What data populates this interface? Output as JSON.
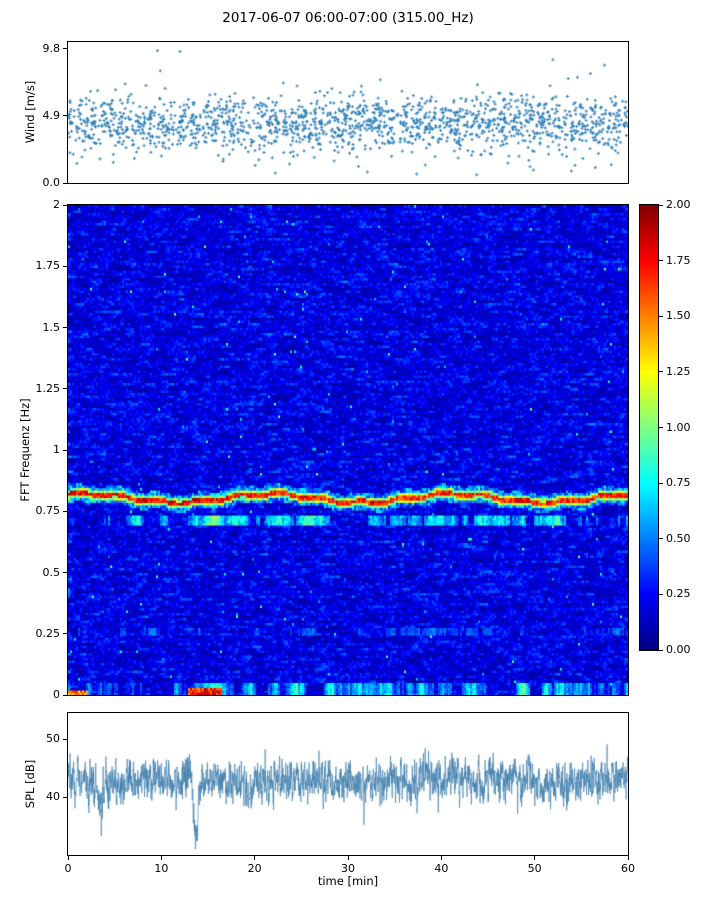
{
  "figure": {
    "title": "2017-06-07 06:00-07:00 (315.00_Hz)",
    "xlabel": "time [min]",
    "background_color": "#ffffff",
    "text_color": "#000000"
  },
  "xticks": [
    {
      "value": 0,
      "label": "0"
    },
    {
      "value": 10,
      "label": "10"
    },
    {
      "value": 20,
      "label": "20"
    },
    {
      "value": 30,
      "label": "30"
    },
    {
      "value": 40,
      "label": "40"
    },
    {
      "value": 50,
      "label": "50"
    },
    {
      "value": 60,
      "label": "60"
    }
  ],
  "chart_data": [
    {
      "id": "wind",
      "type": "scatter",
      "ylabel": "Wind [m/s]",
      "x_range": [
        0,
        60
      ],
      "y_range": [
        0,
        10.3
      ],
      "yticks": [
        {
          "value": 9.8,
          "label": "9.8"
        },
        {
          "value": 4.9,
          "label": "4.9"
        },
        {
          "value": 0,
          "label": "0.0"
        }
      ],
      "marker_color": "#2e7fb8",
      "n_points": 1700,
      "mean": 4.35,
      "std": 1.05,
      "outlier_high_max": 9.7,
      "description": "Dense scatter of wind speed ~2-7 m/s around 4.5 m/s, sparse outliers up to ~9.7"
    },
    {
      "id": "spectrogram",
      "type": "heatmap",
      "ylabel": "FFT Frequenz [Hz]",
      "x_range": [
        0,
        60
      ],
      "y_range": [
        0,
        2
      ],
      "yticks": [
        {
          "value": 2,
          "label": "2"
        },
        {
          "value": 1.75,
          "label": "1.75"
        },
        {
          "value": 1.5,
          "label": "1.5"
        },
        {
          "value": 1.25,
          "label": "1.25"
        },
        {
          "value": 1,
          "label": "1"
        },
        {
          "value": 0.75,
          "label": "0.75"
        },
        {
          "value": 0.5,
          "label": "0.5"
        },
        {
          "value": 0.25,
          "label": "0.25"
        },
        {
          "value": 0,
          "label": "0"
        }
      ],
      "vmin": 0,
      "vmax": 2,
      "colormap": "jet",
      "background_level": 0.15,
      "features": [
        {
          "name": "main-ridge",
          "freq_hz": 0.805,
          "freq_wiggle_hz": 0.018,
          "peak_value": 2.0,
          "extent": "full width"
        },
        {
          "name": "secondary-band",
          "freq_hz": 0.71,
          "peak_value": 1.0,
          "intermittent": true
        },
        {
          "name": "near-dc-band",
          "freq_hz": 0.03,
          "peak_value": 1.0,
          "intermittent": true
        },
        {
          "name": "near-dc-burst",
          "freq_hz": 0.02,
          "t_range_min": [
            12.8,
            16.5
          ],
          "peak_value": 2.0
        },
        {
          "name": "left-edge-burst",
          "freq_hz": 0.015,
          "t_range_min": [
            0,
            2.2
          ],
          "peak_value": 1.6
        },
        {
          "name": "weak-band",
          "freq_hz": 0.26,
          "peak_value": 0.6,
          "intermittent": true
        }
      ]
    },
    {
      "id": "spl",
      "type": "line",
      "ylabel": "SPL [dB]",
      "x_range": [
        0,
        60
      ],
      "y_range": [
        30,
        54.5
      ],
      "yticks": [
        {
          "value": 50,
          "label": "50"
        },
        {
          "value": 40,
          "label": "40"
        }
      ],
      "line_color": "#3f7fad",
      "mean": 42.8,
      "noise_std": 1.5,
      "dips": [
        {
          "time_min": 13.7,
          "depth_db": 9.8
        },
        {
          "time_min": 3.6,
          "depth_db": 4.2
        },
        {
          "time_min": 19.4,
          "depth_db": 4.0
        }
      ],
      "description": "Noisy SPL trace fluctuating ~38-48 dB, deep minimum ~33 dB near t=13.7 min"
    }
  ],
  "colorbar": {
    "colormap": "jet",
    "range": [
      0,
      2
    ],
    "ticks": [
      {
        "value": 2,
        "label": "2.00"
      },
      {
        "value": 1.75,
        "label": "1.75"
      },
      {
        "value": 1.5,
        "label": "1.50"
      },
      {
        "value": 1.25,
        "label": "1.25"
      },
      {
        "value": 1,
        "label": "1.00"
      },
      {
        "value": 0.75,
        "label": "0.75"
      },
      {
        "value": 0.5,
        "label": "0.50"
      },
      {
        "value": 0.25,
        "label": "0.25"
      },
      {
        "value": 0,
        "label": "0.00"
      }
    ]
  }
}
